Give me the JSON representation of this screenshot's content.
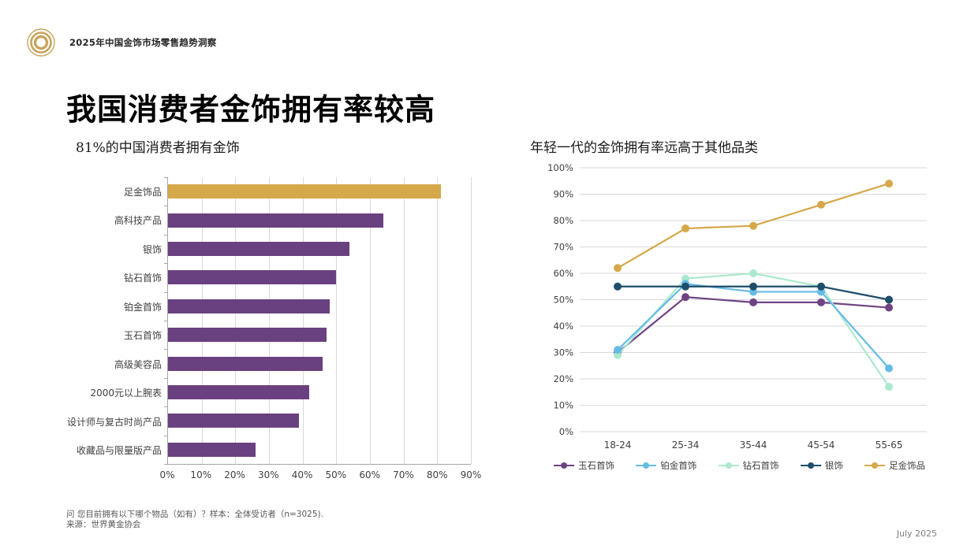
{
  "page": {
    "header_title": "2025年中国金饰市场零售趋势洞察",
    "slide_title": "我国消费者金饰拥有率较高",
    "footer_question": "问 您目前拥有以下哪个物品（如有）？样本：全体受访者（n=3025).",
    "footer_source": "来源：世界黄金协会",
    "date_label": "July 2025"
  },
  "icons": {
    "logo": "concentric-gold-circles",
    "logo_color": "#c8a45c"
  },
  "colors": {
    "bar_highlight_gold": "#d5a849",
    "bar_purple": "#6a4180",
    "gridline": "#d9d9d9",
    "axis_line": "#a6a6a6",
    "axis_text": "#404040",
    "footer_text": "#595959"
  },
  "chart_data": [
    {
      "type": "bar",
      "orientation": "horizontal",
      "title": "81%的中国消费者拥有金饰",
      "categories": [
        "足金饰品",
        "高科技产品",
        "银饰",
        "钻石首饰",
        "铂金首饰",
        "玉石首饰",
        "高级美容品",
        "2000元以上腕表",
        "设计师与复古时尚产品",
        "收藏品与限量版产品"
      ],
      "values": [
        81,
        64,
        54,
        50,
        48,
        47,
        46,
        42,
        39,
        26
      ],
      "highlight_index": 0,
      "colors": {
        "highlight": "#d5a849",
        "default": "#6a4180"
      },
      "xlim": [
        0,
        90
      ],
      "x_ticks": [
        "0%",
        "10%",
        "20%",
        "30%",
        "40%",
        "50%",
        "60%",
        "70%",
        "80%",
        "90%"
      ],
      "grid": "vertical"
    },
    {
      "type": "line",
      "title": "年轻一代的金饰拥有率远高于其他品类",
      "x": [
        "18-24",
        "25-34",
        "35-44",
        "45-54",
        "55-65"
      ],
      "series": [
        {
          "name": "玉石首饰",
          "color": "#6f4383",
          "values": [
            30,
            51,
            49,
            49,
            47
          ]
        },
        {
          "name": "铂金首饰",
          "color": "#66bbe5",
          "values": [
            31,
            56,
            53,
            53,
            24
          ]
        },
        {
          "name": "钻石首饰",
          "color": "#abe9ce",
          "values": [
            29,
            58,
            60,
            55,
            17
          ]
        },
        {
          "name": "银饰",
          "color": "#1e4e6b",
          "values": [
            55,
            55,
            55,
            55,
            50
          ]
        },
        {
          "name": "足金饰品",
          "color": "#d5a849",
          "values": [
            62,
            77,
            78,
            86,
            94
          ]
        }
      ],
      "draw_order": [
        0,
        2,
        1,
        3,
        4
      ],
      "ylim": [
        0,
        100
      ],
      "y_ticks": [
        "0%",
        "10%",
        "20%",
        "30%",
        "40%",
        "50%",
        "60%",
        "70%",
        "80%",
        "90%",
        "100%"
      ],
      "legend_position": "bottom",
      "grid": "horizontal"
    }
  ]
}
